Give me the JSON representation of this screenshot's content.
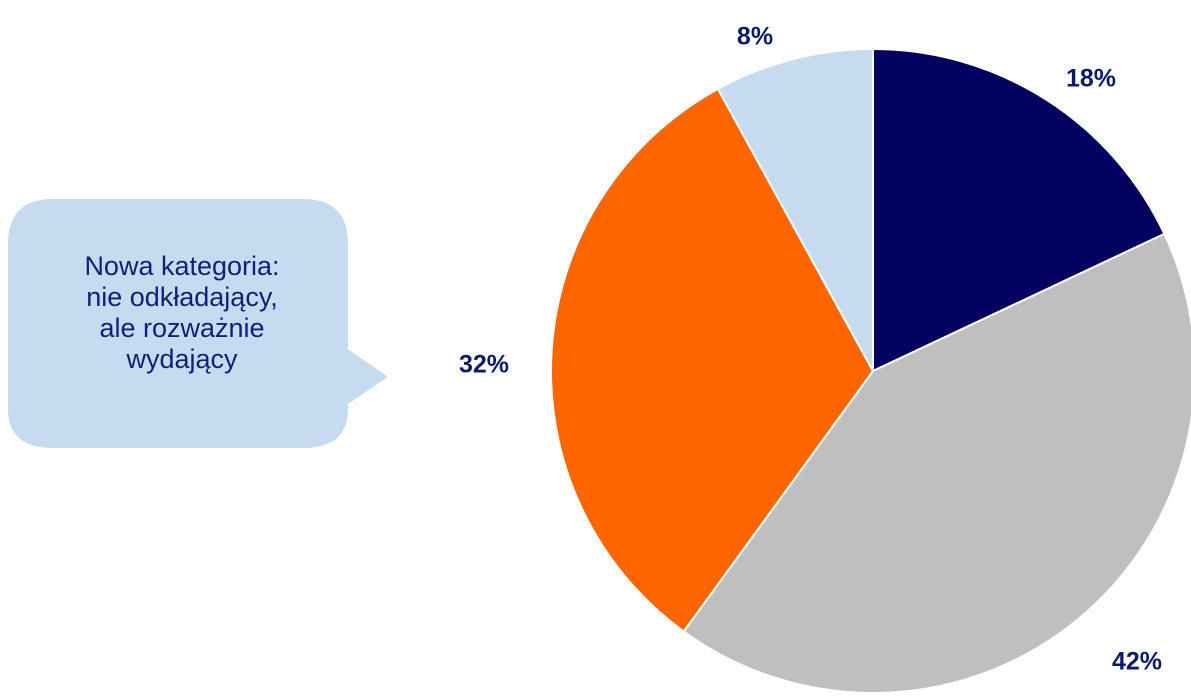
{
  "callout": {
    "lines": [
      "Nowa kategoria:",
      "nie odkładający,",
      "ale rozważnie",
      "wydający"
    ]
  },
  "chart_data": {
    "type": "pie",
    "title": "",
    "slices": [
      {
        "value": 18,
        "label": "18%",
        "color": "#02015f"
      },
      {
        "value": 42,
        "label": "42%",
        "color": "#bfbfbf"
      },
      {
        "value": 32,
        "label": "32%",
        "color": "#ff6600"
      },
      {
        "value": 8,
        "label": "8%",
        "color": "#c6dbef"
      }
    ],
    "label_color": "#0b1a6b",
    "callout_color": "#c6dbef",
    "callout_text_color": "#0f1f7a",
    "start_angle": "top",
    "direction": "clockwise",
    "legend": "none"
  }
}
